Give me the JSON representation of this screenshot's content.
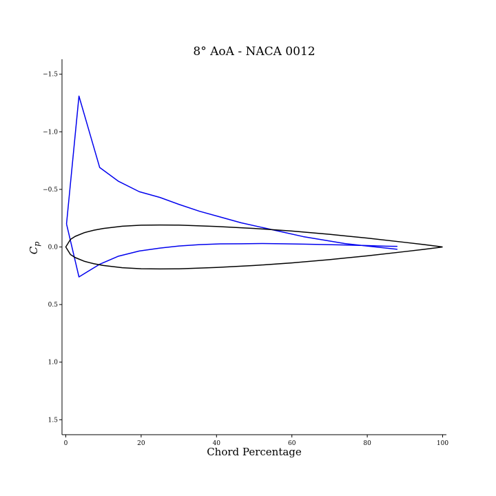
{
  "chart_data": {
    "type": "line",
    "title": "8° AoA - NACA 0012",
    "xlabel": "Chord Percentage",
    "ylabel": "C_p",
    "xlim": [
      -1,
      101
    ],
    "ylim": [
      1.63,
      -1.63
    ],
    "y_inverted": true,
    "grid": false,
    "x_ticks": [
      0,
      20,
      40,
      60,
      80,
      100
    ],
    "y_ticks": [
      -1.5,
      -1.0,
      -0.5,
      0.0,
      0.5,
      1.0,
      1.5
    ],
    "x_tick_labels": [
      "0",
      "20",
      "40",
      "60",
      "80",
      "100"
    ],
    "y_tick_labels": [
      "−1.5",
      "−1.0",
      "−0.5",
      "0.0",
      "0.5",
      "1.0",
      "1.5"
    ],
    "series": [
      {
        "color": "#0000ee",
        "x": [
          0.2,
          3.5,
          9,
          14,
          19.5,
          25,
          30,
          35.5,
          41,
          46.5,
          52,
          57.5,
          63,
          68.5,
          74,
          79.5,
          85,
          88
        ],
        "y": [
          -0.2,
          -1.31,
          -0.69,
          -0.57,
          -0.48,
          -0.43,
          -0.37,
          -0.31,
          -0.26,
          -0.21,
          -0.17,
          -0.13,
          -0.09,
          -0.06,
          -0.03,
          -0.01,
          0.01,
          0.02
        ]
      },
      {
        "color": "#0000ee",
        "x": [
          0.2,
          3.5,
          9,
          14,
          19.5,
          25,
          30,
          35.5,
          41,
          46.5,
          52,
          57.5,
          63,
          68.5,
          74,
          79.5,
          85,
          88
        ],
        "y": [
          -0.2,
          0.26,
          0.15,
          0.08,
          0.035,
          0.01,
          -0.008,
          -0.02,
          -0.027,
          -0.028,
          -0.03,
          -0.028,
          -0.025,
          -0.021,
          -0.017,
          -0.013,
          -0.007,
          -0.005
        ]
      },
      {
        "color": "#000000",
        "type": "airfoil-outline",
        "x": [
          100,
          95,
          90,
          80,
          70,
          60,
          50,
          40,
          30,
          25,
          20,
          15,
          10,
          7.5,
          5,
          2.5,
          1.25,
          0,
          1.25,
          2.5,
          5,
          7.5,
          10,
          15,
          20,
          25,
          30,
          40,
          50,
          60,
          70,
          80,
          90,
          95,
          100
        ],
        "y": [
          0.0,
          -0.021,
          -0.04,
          -0.077,
          -0.11,
          -0.138,
          -0.161,
          -0.178,
          -0.19,
          -0.191,
          -0.189,
          -0.18,
          -0.161,
          -0.146,
          -0.125,
          -0.092,
          -0.066,
          0.0,
          0.066,
          0.092,
          0.125,
          0.146,
          0.161,
          0.18,
          0.189,
          0.191,
          0.19,
          0.178,
          0.161,
          0.138,
          0.11,
          0.077,
          0.04,
          0.021,
          0.0
        ]
      }
    ]
  }
}
